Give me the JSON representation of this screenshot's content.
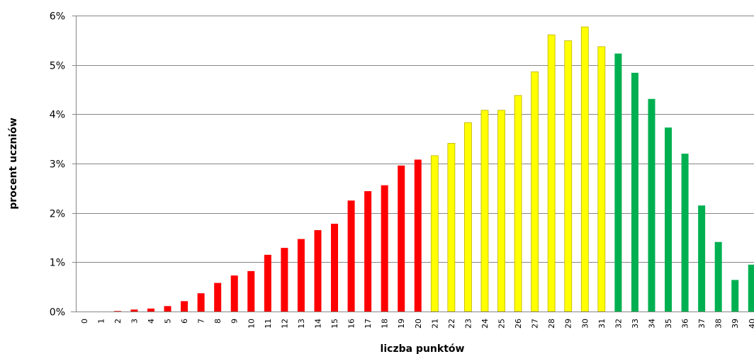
{
  "chart_data": {
    "type": "bar",
    "xlabel": "liczba punktów",
    "ylabel": "procent uczniów",
    "ylim": [
      0,
      6
    ],
    "y_ticks": [
      "0%",
      "1%",
      "2%",
      "3%",
      "4%",
      "5%",
      "6%"
    ],
    "grid": "horizontal",
    "legend": "none",
    "categories": [
      "0",
      "1",
      "2",
      "3",
      "4",
      "5",
      "6",
      "7",
      "8",
      "9",
      "10",
      "11",
      "12",
      "13",
      "14",
      "15",
      "16",
      "17",
      "18",
      "19",
      "20",
      "21",
      "22",
      "23",
      "24",
      "25",
      "26",
      "27",
      "28",
      "29",
      "30",
      "31",
      "32",
      "33",
      "34",
      "35",
      "36",
      "37",
      "38",
      "39",
      "40"
    ],
    "values": [
      0,
      0,
      0.01,
      0.04,
      0.06,
      0.11,
      0.21,
      0.37,
      0.58,
      0.73,
      0.82,
      1.15,
      1.29,
      1.47,
      1.65,
      1.78,
      2.25,
      2.44,
      2.56,
      2.96,
      3.08,
      3.16,
      3.41,
      3.83,
      4.08,
      4.08,
      4.38,
      4.86,
      5.61,
      5.49,
      5.77,
      5.37,
      5.23,
      4.84,
      4.31,
      3.73,
      3.2,
      2.15,
      1.41,
      0.64,
      0.95
    ],
    "colors": {
      "low": "#ff0000",
      "mid": "#ffff00",
      "high": "#00b050",
      "mid_outline": "#bfb000",
      "gridline": "#868686",
      "axis": "#868686"
    },
    "color_groups": [
      {
        "color": "low",
        "from": 0,
        "to": 20
      },
      {
        "color": "mid",
        "from": 21,
        "to": 31
      },
      {
        "color": "high",
        "from": 32,
        "to": 40
      }
    ]
  }
}
